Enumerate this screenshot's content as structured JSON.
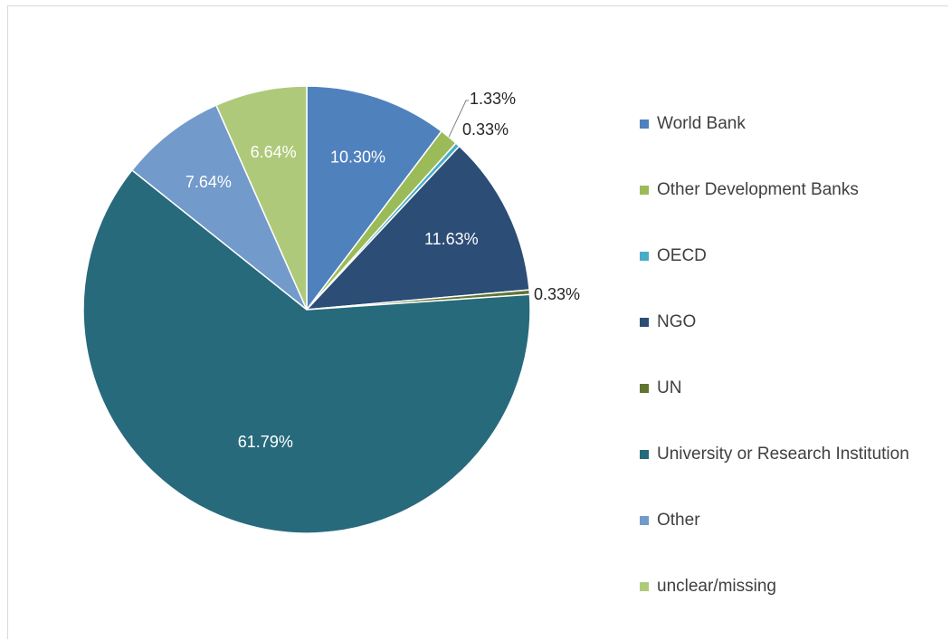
{
  "chart_data": {
    "type": "pie",
    "legend_position": "right",
    "slices": [
      {
        "name": "World Bank",
        "value": 10.3,
        "label": "10.30%",
        "color": "#4f81bd",
        "label_placement": "inside"
      },
      {
        "name": "Other Development Banks",
        "value": 1.33,
        "label": "1.33%",
        "color": "#9bbb59",
        "label_placement": "outside"
      },
      {
        "name": "OECD",
        "value": 0.33,
        "label": "0.33%",
        "color": "#4bacc6",
        "label_placement": "outside"
      },
      {
        "name": "NGO",
        "value": 11.63,
        "label": "11.63%",
        "color": "#2c4d75",
        "label_placement": "inside"
      },
      {
        "name": "UN",
        "value": 0.33,
        "label": "0.33%",
        "color": "#5f7530",
        "label_placement": "outside"
      },
      {
        "name": "University or Research Institution",
        "value": 61.79,
        "label": "61.79%",
        "color": "#276a7c",
        "label_placement": "inside"
      },
      {
        "name": "Other",
        "value": 7.64,
        "label": "7.64%",
        "color": "#729aca",
        "label_placement": "inside"
      },
      {
        "name": "unclear/missing",
        "value": 6.64,
        "label": "6.64%",
        "color": "#afc97a",
        "label_placement": "inside"
      }
    ]
  }
}
